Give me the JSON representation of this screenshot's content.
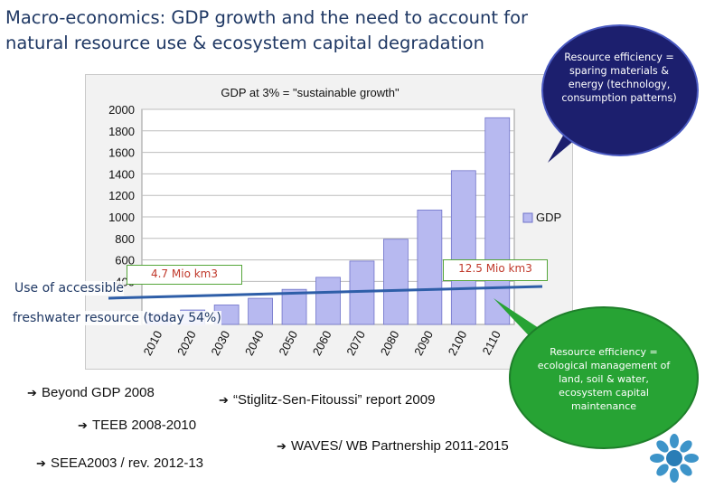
{
  "title": {
    "line1": "Macro-economics: GDP growth and the need to account for",
    "line2": "natural resource use & ecosystem capital degradation"
  },
  "chart_data": {
    "type": "bar",
    "title": "GDP at 3% = \"sustainable growth\"",
    "categories": [
      "2010",
      "2020",
      "2030",
      "2040",
      "2050",
      "2060",
      "2070",
      "2080",
      "2090",
      "2100",
      "2110"
    ],
    "series": [
      {
        "name": "GDP",
        "values": [
          100,
          134,
          181,
          243,
          326,
          438,
          589,
          792,
          1064,
          1430,
          1922
        ]
      }
    ],
    "ylim": [
      0,
      2000
    ],
    "yticks": [
      400,
      600,
      800,
      1000,
      1200,
      1400,
      1600,
      1800,
      2000
    ],
    "grid": true,
    "legend": "right",
    "bar_color": "#b7b9f0"
  },
  "callouts": {
    "resource_efficiency_top": "Resource efficiency = sparing materials & energy (technology, consumption patterns)",
    "resource_efficiency_bottom": "Resource efficiency = ecological management of land, soil & water, ecosystem capital maintenance",
    "water_start": "4.7 Mio km3",
    "water_end": "12.5 Mio km3",
    "water_label_1": "Use of accessible",
    "water_label_2": "freshwater resource (today 54%)"
  },
  "bullets": {
    "b1": "Beyond GDP 2008",
    "b2": "“Stiglitz-Sen-Fitoussi” report 2009",
    "b3": "TEEB 2008-2010",
    "b4": "SEEA2003 / rev. 2012-13",
    "b5": "WAVES/ WB Partnership 2011-2015"
  },
  "colors": {
    "title": "#1f3864",
    "bubble_top": "#1c1f6e",
    "bubble_bottom": "#27a334",
    "water_line": "#2e5ea8"
  },
  "icons": {
    "arrow": "right-arrow-icon",
    "logo": "eea-logo-icon"
  }
}
